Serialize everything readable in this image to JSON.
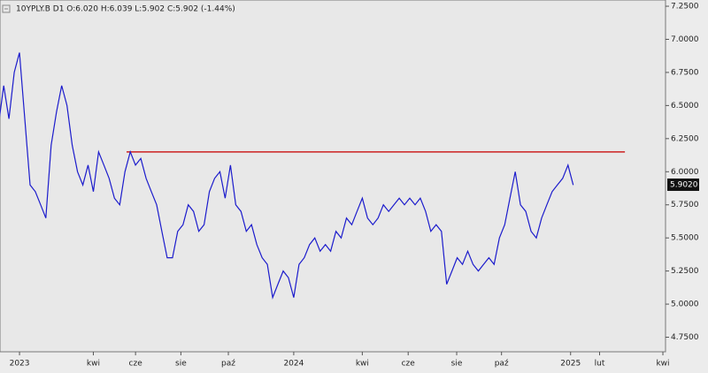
{
  "chart_data": {
    "type": "line",
    "title": "10YPLY.B  D1  O:6.020 H:6.039 L:5.902 C:5.902 (-1.44%)",
    "x": [
      -4,
      -3,
      -2,
      -1,
      0,
      1,
      2,
      3,
      4,
      5,
      6,
      7,
      8,
      9,
      10,
      11,
      12,
      13,
      14,
      15,
      16,
      17,
      18,
      19,
      20,
      21,
      22,
      23,
      24,
      25,
      26,
      27,
      28,
      29,
      30,
      31,
      32,
      33,
      34,
      35,
      36,
      37,
      38,
      39,
      40,
      41,
      42,
      43,
      44,
      45,
      46,
      47,
      48,
      49,
      50,
      51,
      52,
      53,
      54,
      55,
      56,
      57,
      58,
      59,
      60,
      61,
      62,
      63,
      64,
      65,
      66,
      67,
      68,
      69,
      70,
      71,
      72,
      73,
      74,
      75,
      76,
      77,
      78,
      79,
      80,
      81,
      82,
      83,
      84,
      85,
      86,
      87,
      88,
      89,
      90,
      91,
      92,
      93,
      94,
      95,
      96,
      97,
      98,
      99,
      100,
      101,
      102,
      103,
      104,
      105
    ],
    "series": [
      {
        "name": "10YPLY.B",
        "color": "#1c1ccc",
        "values": [
          6.35,
          6.65,
          6.4,
          6.75,
          6.9,
          6.4,
          5.9,
          5.85,
          5.75,
          5.65,
          6.2,
          6.45,
          6.65,
          6.5,
          6.2,
          6.0,
          5.9,
          6.05,
          5.85,
          6.15,
          6.05,
          5.95,
          5.8,
          5.75,
          6.0,
          6.15,
          6.05,
          6.1,
          5.95,
          5.85,
          5.75,
          5.55,
          5.35,
          5.35,
          5.55,
          5.6,
          5.75,
          5.7,
          5.55,
          5.6,
          5.85,
          5.95,
          6.0,
          5.8,
          6.05,
          5.75,
          5.7,
          5.55,
          5.6,
          5.45,
          5.35,
          5.3,
          5.05,
          5.15,
          5.25,
          5.2,
          5.05,
          5.3,
          5.35,
          5.45,
          5.5,
          5.4,
          5.45,
          5.4,
          5.55,
          5.5,
          5.65,
          5.6,
          5.7,
          5.8,
          5.65,
          5.6,
          5.65,
          5.75,
          5.7,
          5.75,
          5.8,
          5.75,
          5.8,
          5.75,
          5.8,
          5.7,
          5.55,
          5.6,
          5.55,
          5.15,
          5.25,
          5.35,
          5.3,
          5.4,
          5.3,
          5.25,
          5.3,
          5.35,
          5.3,
          5.5,
          5.6,
          5.8,
          6.0,
          5.75,
          5.7,
          5.55,
          5.5,
          5.65,
          5.75,
          5.85,
          5.9,
          5.95,
          6.05,
          5.9
        ]
      }
    ],
    "xlim": [
      -3.7,
      122.5
    ],
    "xticks": [
      {
        "value": 0,
        "label": "2023"
      },
      {
        "value": 14,
        "label": "kwi"
      },
      {
        "value": 22,
        "label": "cze"
      },
      {
        "value": 30.6,
        "label": "sie"
      },
      {
        "value": 39.6,
        "label": "paź"
      },
      {
        "value": 52,
        "label": "2024"
      },
      {
        "value": 65,
        "label": "kwi"
      },
      {
        "value": 73.7,
        "label": "cze"
      },
      {
        "value": 82.9,
        "label": "sie"
      },
      {
        "value": 91.4,
        "label": "paź"
      },
      {
        "value": 104.5,
        "label": "2025"
      },
      {
        "value": 110,
        "label": "lut"
      },
      {
        "value": 122,
        "label": "kwi"
      }
    ],
    "ylim": [
      4.64,
      7.297
    ],
    "yticks": [
      {
        "value": 4.75,
        "label": "4.7500"
      },
      {
        "value": 5.0,
        "label": "5.0000"
      },
      {
        "value": 5.25,
        "label": "5.2500"
      },
      {
        "value": 5.5,
        "label": "5.5000"
      },
      {
        "value": 5.75,
        "label": "5.7500"
      },
      {
        "value": 6.0,
        "label": "6.0000"
      },
      {
        "value": 6.25,
        "label": "6.2500"
      },
      {
        "value": 6.5,
        "label": "6.5000"
      },
      {
        "value": 6.75,
        "label": "6.7500"
      },
      {
        "value": 7.0,
        "label": "7.0000"
      },
      {
        "value": 7.25,
        "label": "7.2500"
      }
    ],
    "hline": {
      "y": 6.15,
      "x": [
        20.3,
        114.8
      ],
      "color": "#cc2020"
    },
    "last_price": {
      "value": 5.902,
      "label": "5.9020"
    }
  }
}
